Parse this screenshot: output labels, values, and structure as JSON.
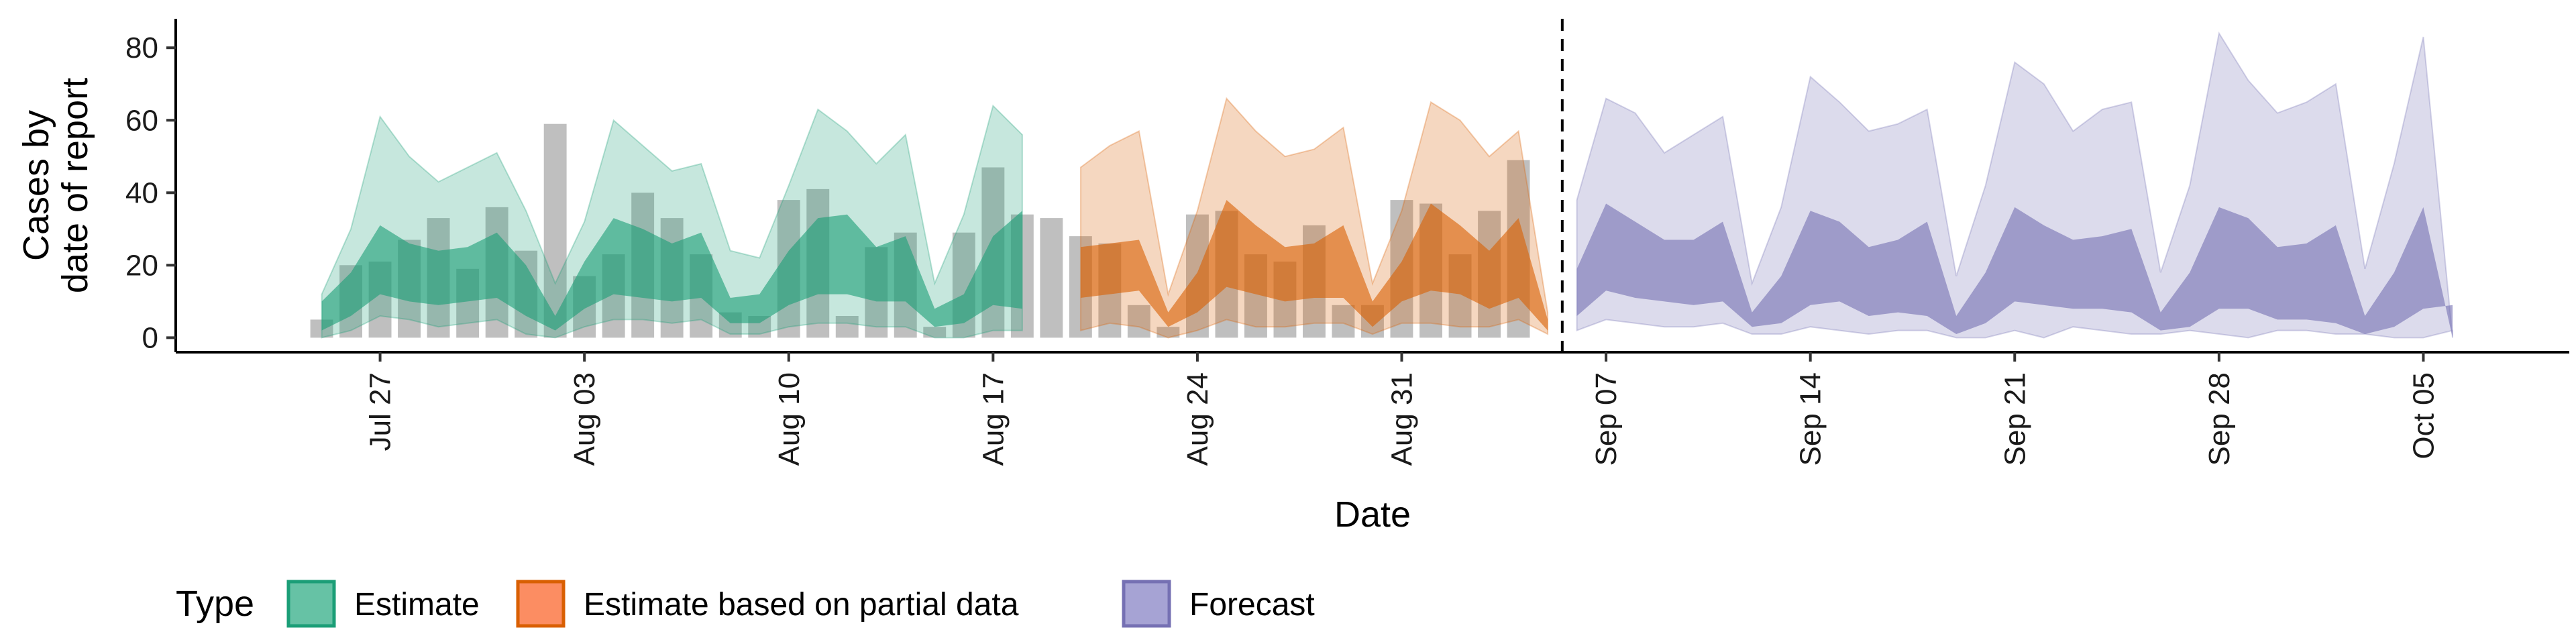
{
  "chart_data": {
    "type": "area",
    "xlabel": "Date",
    "ylabel_lines": [
      "Cases by",
      "date of report"
    ],
    "ylim": [
      -4,
      88
    ],
    "xlim": [
      "2020-07-20",
      "2020-10-10"
    ],
    "y_ticks": [
      0,
      20,
      40,
      60,
      80
    ],
    "x_ticks": [
      {
        "date": "2020-07-27",
        "label": "Jul 27"
      },
      {
        "date": "2020-08-03",
        "label": "Aug 03"
      },
      {
        "date": "2020-08-10",
        "label": "Aug 10"
      },
      {
        "date": "2020-08-17",
        "label": "Aug 17"
      },
      {
        "date": "2020-08-24",
        "label": "Aug 24"
      },
      {
        "date": "2020-08-31",
        "label": "Aug 31"
      },
      {
        "date": "2020-09-07",
        "label": "Sep 07"
      },
      {
        "date": "2020-09-14",
        "label": "Sep 14"
      },
      {
        "date": "2020-09-21",
        "label": "Sep 21"
      },
      {
        "date": "2020-09-28",
        "label": "Sep 28"
      },
      {
        "date": "2020-10-05",
        "label": "Oct 05"
      }
    ],
    "forecast_start": "2020-09-06",
    "grid": false,
    "legend": {
      "position": "bottom",
      "title": "Type",
      "entries": [
        {
          "label": "Estimate",
          "fill": "#66c2a5",
          "stroke": "#1b9e77"
        },
        {
          "label": "Estimate based on partial data",
          "fill": "#fc8d62",
          "stroke": "#d95f02"
        },
        {
          "label": "Forecast",
          "fill": "#a6a3d4",
          "stroke": "#7570b3"
        }
      ]
    },
    "bars": {
      "start": "2020-07-25",
      "color": "#a6a6a6",
      "values": [
        5,
        20,
        21,
        27,
        33,
        19,
        36,
        24,
        59,
        17,
        23,
        40,
        33,
        23,
        7,
        6,
        38,
        41,
        6,
        25,
        29,
        3,
        29,
        47,
        34,
        33,
        28,
        26,
        9,
        3,
        34,
        35,
        23,
        21,
        31,
        9,
        9,
        38,
        37,
        23,
        35,
        49
      ]
    },
    "series": [
      {
        "name": "Estimate",
        "start": "2020-07-25",
        "fill": "#1b9e77",
        "outer_lower": [
          0,
          2,
          6,
          5,
          3,
          4,
          5,
          1,
          0,
          3,
          5,
          5,
          4,
          5,
          1,
          1,
          3,
          4,
          4,
          3,
          3,
          0,
          0,
          2,
          2
        ],
        "inner_lower": [
          2,
          6,
          12,
          10,
          9,
          10,
          11,
          6,
          2,
          8,
          12,
          11,
          10,
          11,
          4,
          4,
          9,
          12,
          12,
          10,
          10,
          3,
          4,
          9,
          8
        ],
        "inner_upper": [
          10,
          18,
          31,
          26,
          24,
          25,
          29,
          20,
          6,
          21,
          33,
          30,
          26,
          29,
          11,
          12,
          24,
          33,
          34,
          25,
          28,
          8,
          12,
          28,
          35
        ],
        "outer_upper": [
          12,
          30,
          61,
          50,
          43,
          47,
          51,
          35,
          15,
          32,
          60,
          53,
          46,
          48,
          24,
          22,
          42,
          63,
          57,
          48,
          56,
          15,
          34,
          64,
          56
        ]
      },
      {
        "name": "Estimate based on partial data",
        "start": "2020-08-20",
        "fill": "#d95f02",
        "outer_lower": [
          2,
          4,
          3,
          0,
          2,
          5,
          3,
          3,
          4,
          4,
          1,
          4,
          4,
          3,
          3,
          5,
          1
        ],
        "inner_lower": [
          11,
          12,
          13,
          3,
          7,
          14,
          12,
          10,
          11,
          11,
          3,
          10,
          13,
          12,
          8,
          11,
          2
        ],
        "inner_upper": [
          25,
          26,
          27,
          7,
          18,
          38,
          31,
          25,
          26,
          31,
          10,
          21,
          37,
          31,
          24,
          33,
          5
        ],
        "outer_upper": [
          47,
          53,
          57,
          12,
          35,
          66,
          57,
          50,
          52,
          58,
          15,
          35,
          65,
          60,
          50,
          57,
          7
        ]
      },
      {
        "name": "Forecast",
        "start": "2020-09-06",
        "fill": "#7570b3",
        "outer_lower": [
          2,
          5,
          4,
          3,
          3,
          4,
          1,
          1,
          3,
          2,
          1,
          2,
          2,
          0,
          0,
          2,
          0,
          3,
          2,
          1,
          1,
          2,
          1,
          0,
          2,
          2,
          1,
          1,
          0,
          0,
          2
        ],
        "inner_lower": [
          6,
          13,
          11,
          10,
          9,
          10,
          3,
          4,
          9,
          10,
          6,
          7,
          6,
          1,
          4,
          10,
          9,
          8,
          8,
          7,
          2,
          3,
          8,
          8,
          5,
          5,
          4,
          1,
          3,
          8,
          9
        ],
        "inner_upper": [
          19,
          37,
          32,
          27,
          27,
          32,
          7,
          17,
          35,
          32,
          25,
          27,
          32,
          6,
          18,
          36,
          31,
          27,
          28,
          30,
          7,
          18,
          36,
          33,
          25,
          26,
          31,
          6,
          18,
          36,
          0
        ],
        "outer_upper": [
          38,
          66,
          62,
          51,
          56,
          61,
          15,
          36,
          72,
          65,
          57,
          59,
          63,
          17,
          42,
          76,
          70,
          57,
          63,
          65,
          18,
          42,
          84,
          71,
          62,
          65,
          70,
          19,
          48,
          83,
          0
        ]
      }
    ]
  }
}
